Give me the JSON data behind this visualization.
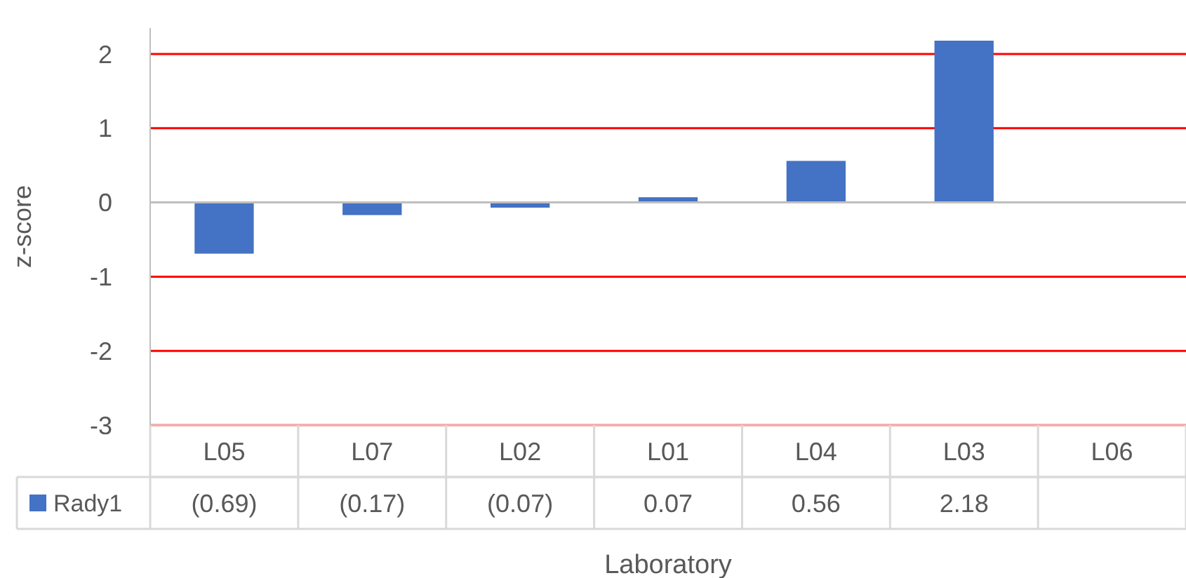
{
  "chart_data": {
    "type": "bar",
    "xlabel": "Laboratory",
    "ylabel": "z-score",
    "categories": [
      "L05",
      "L07",
      "L02",
      "L01",
      "L04",
      "L03",
      "L06"
    ],
    "series": [
      {
        "name": "Rady1",
        "color": "#4472c4",
        "values": [
          -0.69,
          -0.17,
          -0.07,
          0.07,
          0.56,
          2.18,
          null
        ],
        "value_labels": [
          "(0.69)",
          "(0.17)",
          "(0.07)",
          "0.07",
          "0.56",
          "2.18",
          null
        ]
      }
    ],
    "ylim": [
      -3,
      2.35
    ],
    "yticks": [
      -3,
      -2,
      -1,
      0,
      1,
      2
    ],
    "grid": true,
    "legend": "bottom"
  }
}
